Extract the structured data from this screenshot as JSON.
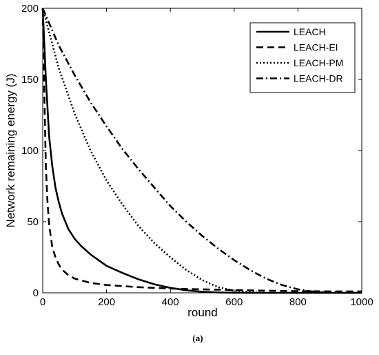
{
  "caption": "(a)",
  "chart_data": {
    "type": "line",
    "title": "",
    "xlabel": "round",
    "ylabel": "Network remaining energy (J)",
    "xlim": [
      0,
      1000
    ],
    "ylim": [
      0,
      200
    ],
    "xticks": [
      "0",
      "200",
      "400",
      "600",
      "800",
      "1000"
    ],
    "yticks": [
      "0",
      "50",
      "100",
      "150",
      "200"
    ],
    "grid": false,
    "legend_position": "top-right",
    "series": [
      {
        "name": "LEACH",
        "style": "solid",
        "color": "#000000",
        "x": [
          0,
          10,
          20,
          30,
          40,
          50,
          60,
          80,
          100,
          120,
          150,
          200,
          250,
          300,
          350,
          400,
          450,
          500,
          550,
          600,
          650,
          700,
          800,
          900,
          1000
        ],
        "y": [
          200,
          150,
          110,
          89,
          74,
          64,
          56,
          45,
          38,
          33,
          27,
          19,
          14,
          9.5,
          6,
          3.5,
          1.8,
          0.8,
          0.3,
          0.1,
          0,
          0,
          0,
          0,
          0
        ]
      },
      {
        "name": "LEACH-EI",
        "style": "dashed",
        "color": "#000000",
        "x": [
          0,
          5,
          10,
          15,
          20,
          30,
          40,
          50,
          60,
          80,
          100,
          150,
          200,
          300,
          400,
          500,
          600,
          700,
          800,
          900,
          1000
        ],
        "y": [
          200,
          140,
          88,
          64,
          48,
          32,
          25,
          20,
          16.5,
          12.5,
          10,
          7,
          5.5,
          4,
          3,
          2.5,
          2,
          1.5,
          1.2,
          1,
          1
        ]
      },
      {
        "name": "LEACH-PM",
        "style": "dotted",
        "color": "#000000",
        "x": [
          0,
          50,
          100,
          150,
          200,
          250,
          300,
          350,
          400,
          450,
          500,
          550,
          600,
          650,
          700,
          800,
          900,
          1000
        ],
        "y": [
          200,
          158,
          126,
          100,
          79,
          62,
          47,
          35,
          25,
          16,
          9,
          4,
          1.5,
          0.5,
          0,
          0,
          0,
          0
        ]
      },
      {
        "name": "LEACH-DR",
        "style": "dashdot",
        "color": "#000000",
        "x": [
          0,
          50,
          100,
          150,
          200,
          250,
          300,
          350,
          400,
          450,
          500,
          550,
          600,
          650,
          700,
          750,
          800,
          850,
          900,
          950,
          1000
        ],
        "y": [
          200,
          174,
          153,
          134,
          117,
          101,
          87,
          74,
          61,
          50,
          40,
          31,
          23,
          16,
          10,
          5.5,
          2.5,
          0.8,
          0.2,
          0,
          0
        ]
      }
    ]
  }
}
